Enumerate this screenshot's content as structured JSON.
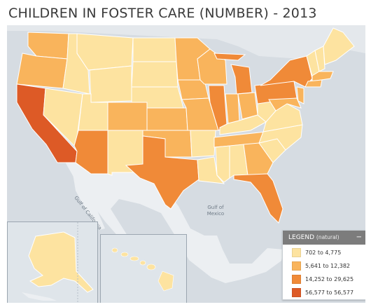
{
  "title": "CHILDREN IN FOSTER CARE (NUMBER) - 2013",
  "map_labels": {
    "gulf_california": "Gulf of California",
    "gulf_mexico_line1": "Gulf of",
    "gulf_mexico_line2": "Mexico"
  },
  "legend": {
    "title": "LEGEND",
    "subtitle": "(natural)",
    "collapse_icon": "minus-icon",
    "bins": [
      {
        "label": "702 to 4,775",
        "color": "#fde3a0"
      },
      {
        "label": "5,641 to 12,382",
        "color": "#f9b45c"
      },
      {
        "label": "14,252 to 29,625",
        "color": "#f08a38"
      },
      {
        "label": "56,577 to 56,577",
        "color": "#dd5a26"
      }
    ]
  },
  "colors": {
    "bin1": "#fde3a0",
    "bin2": "#f9b45c",
    "bin3": "#f08a38",
    "bin4": "#dd5a26",
    "land": "#eceff2",
    "water": "#d6dce2",
    "border": "#ffffff"
  }
}
